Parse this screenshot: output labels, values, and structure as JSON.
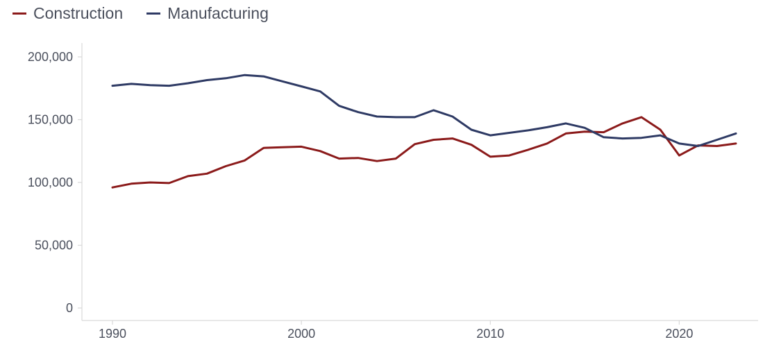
{
  "chart_data": {
    "type": "line",
    "title": "",
    "xlabel": "",
    "ylabel": "",
    "x": [
      1990,
      1991,
      1992,
      1993,
      1994,
      1995,
      1996,
      1997,
      1998,
      1999,
      2000,
      2001,
      2002,
      2003,
      2004,
      2005,
      2006,
      2007,
      2008,
      2009,
      2010,
      2011,
      2012,
      2013,
      2014,
      2015,
      2016,
      2017,
      2018,
      2019,
      2020,
      2021,
      2022,
      2023
    ],
    "xlim": [
      1990,
      2023
    ],
    "ylim": [
      0,
      200000
    ],
    "xticks": [
      1990,
      2000,
      2010,
      2020
    ],
    "yticks": [
      0,
      50000,
      100000,
      150000,
      200000
    ],
    "ytick_labels": [
      "0",
      "50,000",
      "100,000",
      "150,000",
      "200,000"
    ],
    "grid": false,
    "legend_position": "top-left",
    "series": [
      {
        "name": "Construction",
        "color": "#8b1a1a",
        "values": [
          96000,
          99000,
          100000,
          99500,
          105000,
          107000,
          113000,
          117500,
          127500,
          128000,
          128500,
          125000,
          119000,
          119500,
          117000,
          119000,
          130500,
          134000,
          135000,
          130000,
          120500,
          121500,
          126000,
          131000,
          139000,
          140500,
          140000,
          147000,
          152000,
          142000,
          121500,
          129500,
          129000,
          131000
        ]
      },
      {
        "name": "Manufacturing",
        "color": "#2e3a64",
        "values": [
          177000,
          178500,
          177500,
          177000,
          179000,
          181500,
          183000,
          185500,
          184500,
          180500,
          176500,
          172500,
          161000,
          156000,
          152500,
          152000,
          152000,
          157500,
          152500,
          142000,
          137500,
          139500,
          141500,
          144000,
          147000,
          143500,
          136000,
          135000,
          135500,
          137500,
          131000,
          129000,
          134000,
          139000
        ]
      }
    ]
  }
}
